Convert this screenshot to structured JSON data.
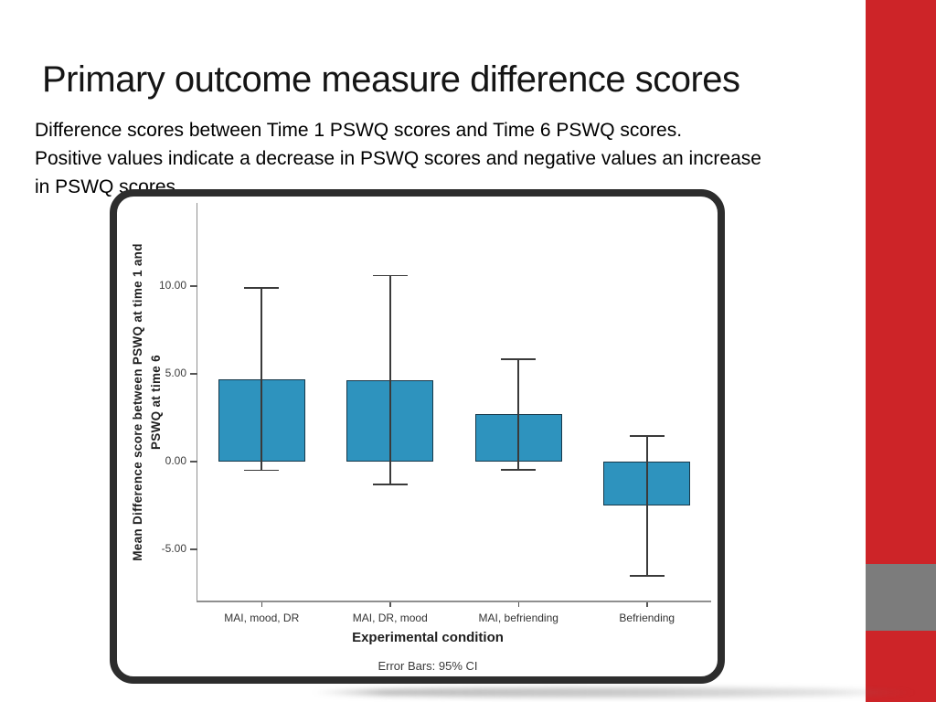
{
  "slide": {
    "title": "Primary outcome measure difference scores",
    "body": "Difference scores between Time 1 PSWQ scores and Time 6 PSWQ scores.\nPositive values indicate a decrease in PSWQ scores and negative values an increase\nin PSWQ scores."
  },
  "accent": {
    "red": "#cd2428",
    "gray": "#7c7c7c"
  },
  "chart_data": {
    "type": "bar",
    "title": "",
    "categories": [
      "MAI, mood, DR",
      "MAI, DR, mood",
      "MAI, befriending",
      "Befriending"
    ],
    "values": [
      4.7,
      4.65,
      2.7,
      -2.5
    ],
    "error_bars": {
      "label": "Error Bars: 95% CI",
      "upper": [
        9.9,
        10.6,
        5.85,
        1.45
      ],
      "lower": [
        -0.5,
        -1.3,
        -0.45,
        -6.5
      ]
    },
    "xlabel": "Experimental condition",
    "ylabel": "Mean Difference score between PSWQ at time 1 and\nPSWQ at time 6",
    "yticks": [
      {
        "label": "10.00",
        "value": 10
      },
      {
        "label": "5.00",
        "value": 5
      },
      {
        "label": "0.00",
        "value": 0
      },
      {
        "label": "-5.00",
        "value": -5
      }
    ],
    "ylim": [
      -8,
      15
    ],
    "grid": false,
    "legend": false,
    "bar_color": "#2e93be",
    "bar_border_color": "#17384a",
    "whisker_color": "#3a3a3a",
    "axis_color": "#8f8f8f"
  }
}
